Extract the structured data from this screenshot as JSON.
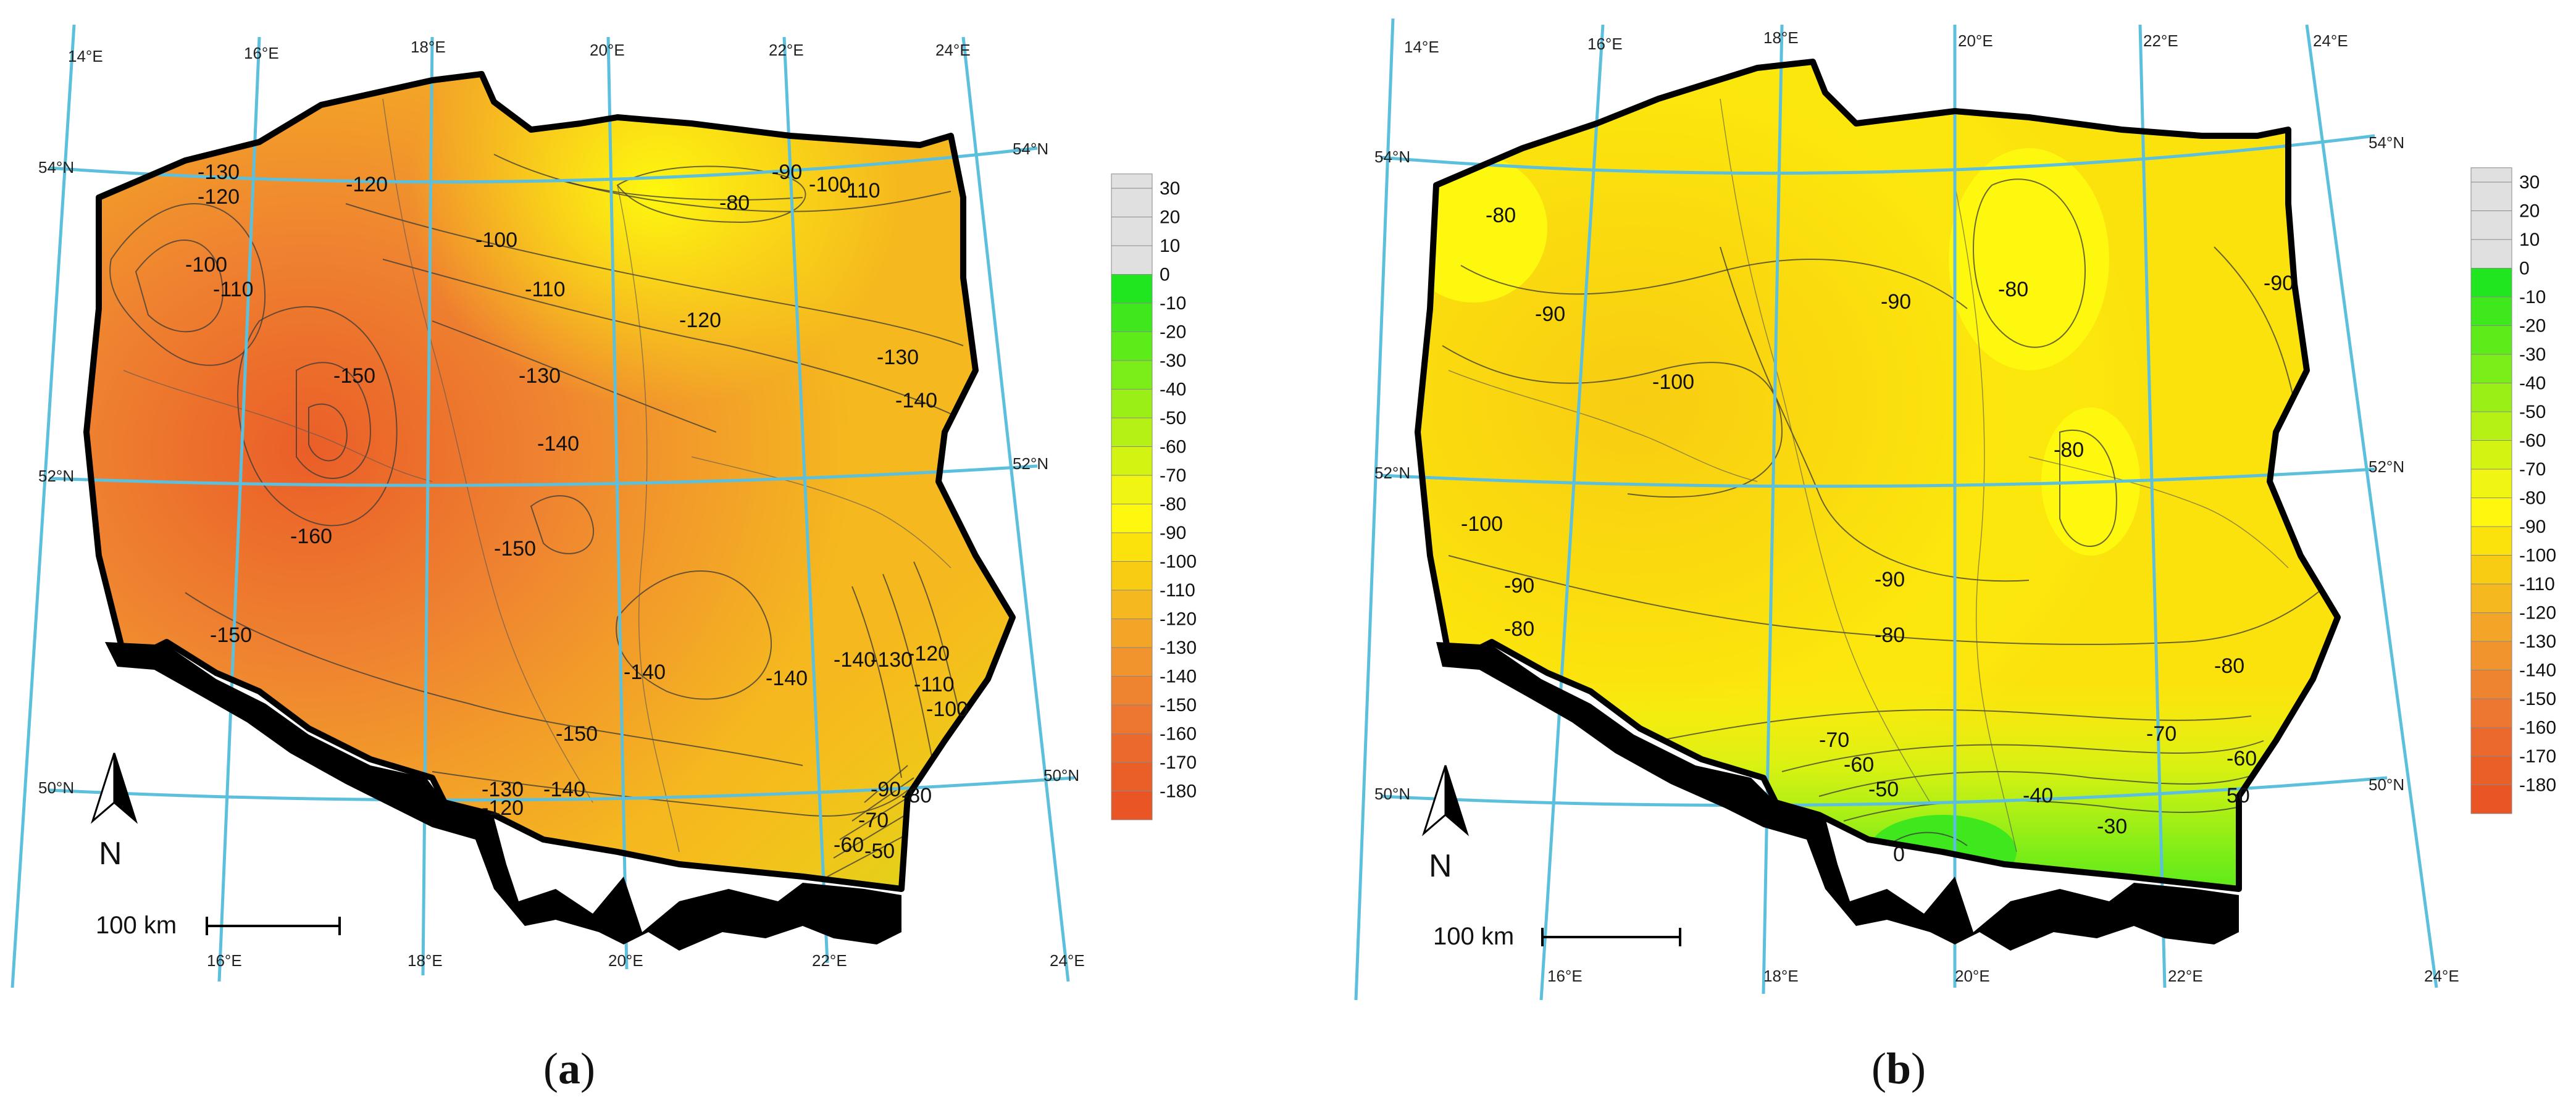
{
  "panels": [
    {
      "id": "a",
      "caption_prefix": "(",
      "caption_letter": "a",
      "caption_suffix": ")",
      "lon_top": [
        "14°E",
        "16°E",
        "18°E",
        "20°E",
        "22°E",
        "24°E"
      ],
      "lon_bottom": [
        "16°E",
        "18°E",
        "20°E",
        "22°E",
        "24°E"
      ],
      "lat_left": [
        "54°N",
        "52°N",
        "50°N"
      ],
      "lat_right": [
        "54°N",
        "52°N",
        "50°N"
      ],
      "contour_labels": [
        "-130",
        "-120",
        "-120",
        "-100",
        "-110",
        "-100",
        "-90",
        "-100",
        "-110",
        "-80",
        "-110",
        "-120",
        "-130",
        "-140",
        "-130",
        "-150",
        "-140",
        "-160",
        "-150",
        "-140",
        "-150",
        "-140",
        "-140",
        "-130",
        "-120",
        "-110",
        "-100",
        "-90",
        "-80",
        "-70",
        "-60",
        "-50",
        "-130",
        "-120",
        "-140",
        "-150"
      ],
      "scale_label": "100 km",
      "north_label": "N",
      "fill_color": "#f29d30"
    },
    {
      "id": "b",
      "caption_prefix": "(",
      "caption_letter": "b",
      "caption_suffix": ")",
      "lon_top": [
        "14°E",
        "16°E",
        "18°E",
        "20°E",
        "22°E",
        "24°E"
      ],
      "lon_bottom": [
        "16°E",
        "18°E",
        "20°E",
        "22°E",
        "24°E"
      ],
      "lat_left": [
        "54°N",
        "52°N",
        "50°N"
      ],
      "lat_right": [
        "54°N",
        "52°N",
        "50°N"
      ],
      "contour_labels": [
        "-80",
        "-90",
        "-90",
        "-80",
        "-90",
        "-100",
        "-80",
        "-100",
        "-90",
        "-80",
        "-90",
        "-80",
        "-70",
        "-60",
        "-50",
        "-40",
        "0",
        "-30",
        "-80",
        "-70",
        "-60",
        "50"
      ],
      "scale_label": "100 km",
      "north_label": "N",
      "fill_color": "#f7e51a"
    }
  ],
  "legend": {
    "labels": [
      "30",
      "20",
      "10",
      "0",
      "-10",
      "-20",
      "-30",
      "-40",
      "-50",
      "-60",
      "-70",
      "-80",
      "-90",
      "-100",
      "-110",
      "-120",
      "-130",
      "-140",
      "-150",
      "-160",
      "-170",
      "-180"
    ],
    "colors": [
      "#e0e0e0",
      "#e0e0e0",
      "#e0e0e0",
      "#1fe61f",
      "#3ee81c",
      "#5deb1a",
      "#7bed18",
      "#99ef16",
      "#b6f115",
      "#d3f313",
      "#f0f511",
      "#fef70e",
      "#fbe20d",
      "#f8cc12",
      "#f5b81e",
      "#f3a527",
      "#f1942d",
      "#ef8430",
      "#ed7630",
      "#eb692d",
      "#ea5e28",
      "#e95524"
    ]
  }
}
